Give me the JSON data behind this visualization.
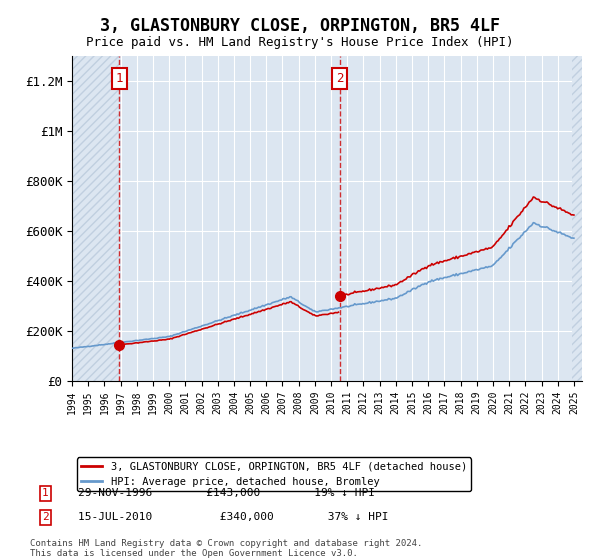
{
  "title": "3, GLASTONBURY CLOSE, ORPINGTON, BR5 4LF",
  "subtitle": "Price paid vs. HM Land Registry's House Price Index (HPI)",
  "ylim": [
    0,
    1300000
  ],
  "yticks": [
    0,
    200000,
    400000,
    600000,
    800000,
    1000000,
    1200000
  ],
  "ytick_labels": [
    "£0",
    "£200K",
    "£400K",
    "£600K",
    "£800K",
    "£1M",
    "£1.2M"
  ],
  "bg_color": "#dce6f1",
  "hatch_color": "#c0cfe0",
  "grid_color": "#ffffff",
  "sale1_x": 1996.92,
  "sale1_y": 143000,
  "sale2_x": 2010.54,
  "sale2_y": 340000,
  "sale_color": "#cc0000",
  "hpi_color": "#6699cc",
  "legend_label1": "3, GLASTONBURY CLOSE, ORPINGTON, BR5 4LF (detached house)",
  "legend_label2": "HPI: Average price, detached house, Bromley",
  "footer": "Contains HM Land Registry data © Crown copyright and database right 2024.\nThis data is licensed under the Open Government Licence v3.0.",
  "xmin": 1994,
  "xmax": 2025.5
}
